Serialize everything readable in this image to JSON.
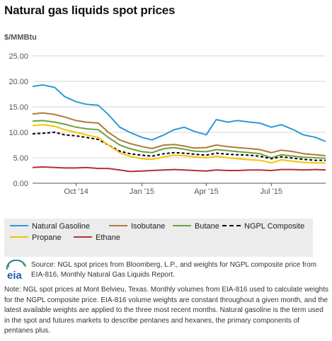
{
  "title": "Natural gas liquids spot prices",
  "unit_label": "$/MMBtu",
  "chart_data": {
    "type": "line",
    "title": "Natural gas liquids spot prices",
    "ylabel": "$/MMBtu",
    "xlabel": "",
    "ylim": [
      0,
      25
    ],
    "xlim": [
      "2014-08-01",
      "2015-09-15"
    ],
    "y_ticks": [
      "0.00",
      "5.00",
      "10.00",
      "15.00",
      "20.00",
      "25.00"
    ],
    "x_ticks": [
      {
        "label": "Oct '14",
        "date": "2014-10-01"
      },
      {
        "label": "Jan '15",
        "date": "2015-01-01"
      },
      {
        "label": "Apr '15",
        "date": "2015-04-01"
      },
      {
        "label": "Jul '15",
        "date": "2015-07-01"
      }
    ],
    "grid": true,
    "legend_position": "bottom",
    "series": [
      {
        "name": "Natural Gasoline",
        "color": "#2c9ad7",
        "dash": "solid",
        "x": [
          "2014-08-01",
          "2014-08-15",
          "2014-09-01",
          "2014-09-15",
          "2014-10-01",
          "2014-10-15",
          "2014-11-01",
          "2014-11-15",
          "2014-12-01",
          "2014-12-15",
          "2015-01-01",
          "2015-01-15",
          "2015-02-01",
          "2015-02-15",
          "2015-03-01",
          "2015-03-15",
          "2015-04-01",
          "2015-04-15",
          "2015-05-01",
          "2015-05-15",
          "2015-06-01",
          "2015-06-15",
          "2015-07-01",
          "2015-07-15",
          "2015-08-01",
          "2015-08-15",
          "2015-09-01",
          "2015-09-15"
        ],
        "y": [
          19.0,
          19.3,
          18.8,
          17.0,
          16.0,
          15.5,
          15.3,
          13.5,
          11.0,
          10.0,
          9.0,
          8.5,
          9.5,
          10.5,
          11.0,
          10.2,
          9.5,
          12.5,
          12.0,
          12.3,
          12.0,
          11.8,
          11.0,
          11.5,
          10.5,
          9.5,
          9.0,
          8.2
        ]
      },
      {
        "name": "Isobutane",
        "color": "#b07a3a",
        "dash": "solid",
        "x": [
          "2014-08-01",
          "2014-08-15",
          "2014-09-01",
          "2014-09-15",
          "2014-10-01",
          "2014-10-15",
          "2014-11-01",
          "2014-11-15",
          "2014-12-01",
          "2014-12-15",
          "2015-01-01",
          "2015-01-15",
          "2015-02-01",
          "2015-02-15",
          "2015-03-01",
          "2015-03-15",
          "2015-04-01",
          "2015-04-15",
          "2015-05-01",
          "2015-05-15",
          "2015-06-01",
          "2015-06-15",
          "2015-07-01",
          "2015-07-15",
          "2015-08-01",
          "2015-08-15",
          "2015-09-01",
          "2015-09-15"
        ],
        "y": [
          13.6,
          13.8,
          13.5,
          13.0,
          12.3,
          12.0,
          11.8,
          10.0,
          8.5,
          7.8,
          7.2,
          6.8,
          7.5,
          7.6,
          7.3,
          6.9,
          7.0,
          7.5,
          7.2,
          7.0,
          6.8,
          6.6,
          6.0,
          6.5,
          6.2,
          5.8,
          5.6,
          5.4
        ]
      },
      {
        "name": "Butane",
        "color": "#6aa33e",
        "dash": "solid",
        "x": [
          "2014-08-01",
          "2014-08-15",
          "2014-09-01",
          "2014-09-15",
          "2014-10-01",
          "2014-10-15",
          "2014-11-01",
          "2014-11-15",
          "2014-12-01",
          "2014-12-15",
          "2015-01-01",
          "2015-01-15",
          "2015-02-01",
          "2015-02-15",
          "2015-03-01",
          "2015-03-15",
          "2015-04-01",
          "2015-04-15",
          "2015-05-01",
          "2015-05-15",
          "2015-06-01",
          "2015-06-15",
          "2015-07-01",
          "2015-07-15",
          "2015-08-01",
          "2015-08-15",
          "2015-09-01",
          "2015-09-15"
        ],
        "y": [
          12.2,
          12.3,
          12.0,
          11.6,
          11.0,
          10.7,
          10.5,
          9.0,
          7.5,
          6.8,
          6.2,
          6.0,
          6.8,
          7.0,
          6.7,
          6.3,
          6.2,
          6.6,
          6.4,
          6.2,
          6.0,
          5.8,
          5.0,
          5.6,
          5.3,
          5.1,
          5.0,
          4.9
        ]
      },
      {
        "name": "NGPL Composite",
        "color": "#000000",
        "dash": "dashed",
        "x": [
          "2014-08-01",
          "2014-08-15",
          "2014-09-01",
          "2014-09-15",
          "2014-10-01",
          "2014-10-15",
          "2014-11-01",
          "2014-11-15",
          "2014-12-01",
          "2014-12-15",
          "2015-01-01",
          "2015-01-15",
          "2015-02-01",
          "2015-02-15",
          "2015-03-01",
          "2015-03-15",
          "2015-04-01",
          "2015-04-15",
          "2015-05-01",
          "2015-05-15",
          "2015-06-01",
          "2015-06-15",
          "2015-07-01",
          "2015-07-15",
          "2015-08-01",
          "2015-08-15",
          "2015-09-01",
          "2015-09-15"
        ],
        "y": [
          9.7,
          9.8,
          10.0,
          9.5,
          9.3,
          9.0,
          8.6,
          7.5,
          6.3,
          5.8,
          5.5,
          5.3,
          5.8,
          6.0,
          5.9,
          5.7,
          5.5,
          5.9,
          5.7,
          5.6,
          5.5,
          5.3,
          4.8,
          5.2,
          4.9,
          4.7,
          4.5,
          4.5
        ]
      },
      {
        "name": "Propane",
        "color": "#f6c400",
        "dash": "solid",
        "x": [
          "2014-08-01",
          "2014-08-15",
          "2014-09-01",
          "2014-09-15",
          "2014-10-01",
          "2014-10-15",
          "2014-11-01",
          "2014-11-15",
          "2014-12-01",
          "2014-12-15",
          "2015-01-01",
          "2015-01-15",
          "2015-02-01",
          "2015-02-15",
          "2015-03-01",
          "2015-03-15",
          "2015-04-01",
          "2015-04-15",
          "2015-05-01",
          "2015-05-15",
          "2015-06-01",
          "2015-06-15",
          "2015-07-01",
          "2015-07-15",
          "2015-08-01",
          "2015-08-15",
          "2015-09-01",
          "2015-09-15"
        ],
        "y": [
          11.3,
          11.5,
          11.2,
          10.5,
          10.0,
          9.5,
          9.0,
          7.5,
          6.0,
          5.3,
          4.8,
          4.7,
          5.2,
          5.5,
          5.4,
          5.2,
          5.0,
          5.3,
          5.0,
          4.8,
          4.6,
          4.5,
          4.0,
          4.6,
          4.3,
          4.1,
          4.0,
          4.0
        ]
      },
      {
        "name": "Ethane",
        "color": "#b52e3c",
        "dash": "solid",
        "x": [
          "2014-08-01",
          "2014-08-15",
          "2014-09-01",
          "2014-09-15",
          "2014-10-01",
          "2014-10-15",
          "2014-11-01",
          "2014-11-15",
          "2014-12-01",
          "2014-12-15",
          "2015-01-01",
          "2015-01-15",
          "2015-02-01",
          "2015-02-15",
          "2015-03-01",
          "2015-03-15",
          "2015-04-01",
          "2015-04-15",
          "2015-05-01",
          "2015-05-15",
          "2015-06-01",
          "2015-06-15",
          "2015-07-01",
          "2015-07-15",
          "2015-08-01",
          "2015-08-15",
          "2015-09-01",
          "2015-09-15"
        ],
        "y": [
          3.1,
          3.2,
          3.1,
          3.0,
          3.0,
          3.1,
          2.9,
          2.9,
          2.6,
          2.3,
          2.4,
          2.5,
          2.6,
          2.7,
          2.6,
          2.5,
          2.4,
          2.6,
          2.5,
          2.5,
          2.6,
          2.6,
          2.5,
          2.7,
          2.7,
          2.6,
          2.7,
          2.6
        ]
      }
    ]
  },
  "legend": {
    "items": [
      {
        "label": "Natural Gasoline",
        "color": "#2c9ad7",
        "dash": "solid"
      },
      {
        "label": "Isobutane",
        "color": "#b07a3a",
        "dash": "solid"
      },
      {
        "label": "Butane",
        "color": "#6aa33e",
        "dash": "solid"
      },
      {
        "label": "NGPL Composite",
        "color": "#000000",
        "dash": "dashed"
      },
      {
        "label": "Propane",
        "color": "#f6c400",
        "dash": "solid"
      },
      {
        "label": "Ethane",
        "color": "#b52e3c",
        "dash": "solid"
      }
    ]
  },
  "logo": {
    "text": "eia",
    "icon": "eia-logo-icon"
  },
  "source_text": "Source: NGL spot prices from Bloomberg, L.P., and weights for NGPL composite price from EIA-816, Monthly Natural Gas Liquids Report.",
  "note_text": "Note: NGL spot prices at Mont Belvieu, Texas. Monthly volumes from EIA-816 used to calculate weights for the NGPL composite price. EIA-816 volume weights are constant throughout a given month, and the latest available weights are applied to the three most recent months. Natural gasoline is the term used in the spot and futures markets to describe pentanes and hexanes, the primary components of pentanes plus."
}
